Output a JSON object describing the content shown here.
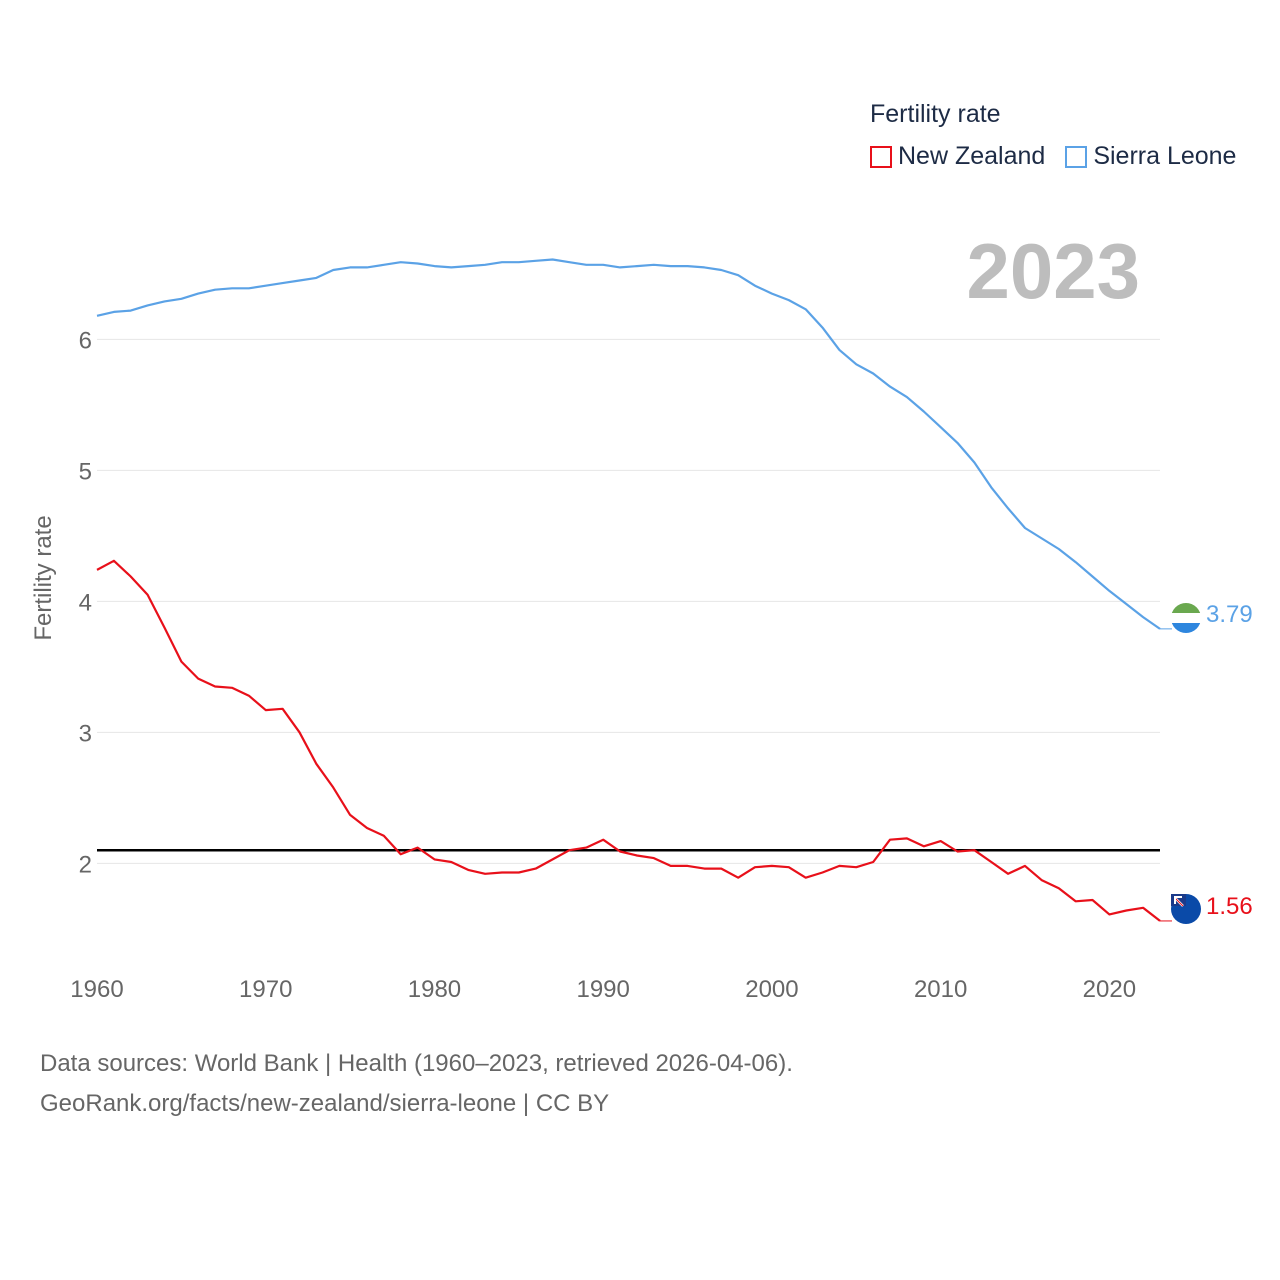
{
  "legend": {
    "title": "Fertility rate",
    "items": [
      {
        "name": "New Zealand",
        "color": "#e8101a"
      },
      {
        "name": "Sierra Leone",
        "color": "#5ba2e6"
      }
    ]
  },
  "current_year": "2023",
  "end_values": {
    "new_zealand": "1.56",
    "sierra_leone": "3.79"
  },
  "footer": {
    "sources": "Data sources: World Bank | Health (1960–2023, retrieved 2026-04-06).",
    "credit": "GeoRank.org/facts/new-zealand/sierra-leone | CC BY"
  },
  "icons": [
    "new-zealand-flag-icon",
    "sierra-leone-flag-icon"
  ],
  "chart_data": {
    "type": "line",
    "title": "",
    "xlabel": "",
    "ylabel": "Fertility rate",
    "xlim": [
      1960,
      2023
    ],
    "ylim": [
      1.3,
      6.95
    ],
    "x_ticks": [
      1960,
      1970,
      1980,
      1990,
      2000,
      2010,
      2020
    ],
    "y_ticks": [
      2,
      3,
      4,
      5,
      6
    ],
    "reference_line": {
      "y": 2.1,
      "color": "#000000"
    },
    "x": [
      1960,
      1961,
      1962,
      1963,
      1964,
      1965,
      1966,
      1967,
      1968,
      1969,
      1970,
      1971,
      1972,
      1973,
      1974,
      1975,
      1976,
      1977,
      1978,
      1979,
      1980,
      1981,
      1982,
      1983,
      1984,
      1985,
      1986,
      1987,
      1988,
      1989,
      1990,
      1991,
      1992,
      1993,
      1994,
      1995,
      1996,
      1997,
      1998,
      1999,
      2000,
      2001,
      2002,
      2003,
      2004,
      2005,
      2006,
      2007,
      2008,
      2009,
      2010,
      2011,
      2012,
      2013,
      2014,
      2015,
      2016,
      2017,
      2018,
      2019,
      2020,
      2021,
      2022,
      2023
    ],
    "series": [
      {
        "name": "New Zealand",
        "color": "#e8101a",
        "values": [
          4.24,
          4.31,
          4.19,
          4.05,
          3.8,
          3.54,
          3.41,
          3.35,
          3.34,
          3.28,
          3.17,
          3.18,
          3.0,
          2.76,
          2.58,
          2.37,
          2.27,
          2.21,
          2.07,
          2.12,
          2.03,
          2.01,
          1.95,
          1.92,
          1.93,
          1.93,
          1.96,
          2.03,
          2.1,
          2.12,
          2.18,
          2.09,
          2.06,
          2.04,
          1.98,
          1.98,
          1.96,
          1.96,
          1.89,
          1.97,
          1.98,
          1.97,
          1.89,
          1.93,
          1.98,
          1.97,
          2.01,
          2.18,
          2.19,
          2.13,
          2.17,
          2.09,
          2.1,
          2.01,
          1.92,
          1.98,
          1.87,
          1.81,
          1.71,
          1.72,
          1.61,
          1.64,
          1.66,
          1.56
        ]
      },
      {
        "name": "Sierra Leone",
        "color": "#5ba2e6",
        "values": [
          6.18,
          6.21,
          6.22,
          6.26,
          6.29,
          6.31,
          6.35,
          6.38,
          6.39,
          6.39,
          6.41,
          6.43,
          6.45,
          6.47,
          6.53,
          6.55,
          6.55,
          6.57,
          6.59,
          6.58,
          6.56,
          6.55,
          6.56,
          6.57,
          6.59,
          6.59,
          6.6,
          6.61,
          6.59,
          6.57,
          6.57,
          6.55,
          6.56,
          6.57,
          6.56,
          6.56,
          6.55,
          6.53,
          6.49,
          6.41,
          6.35,
          6.3,
          6.23,
          6.09,
          5.92,
          5.81,
          5.74,
          5.64,
          5.56,
          5.45,
          5.33,
          5.21,
          5.06,
          4.87,
          4.71,
          4.56,
          4.48,
          4.4,
          4.3,
          4.19,
          4.08,
          3.98,
          3.88,
          3.79
        ]
      }
    ]
  }
}
